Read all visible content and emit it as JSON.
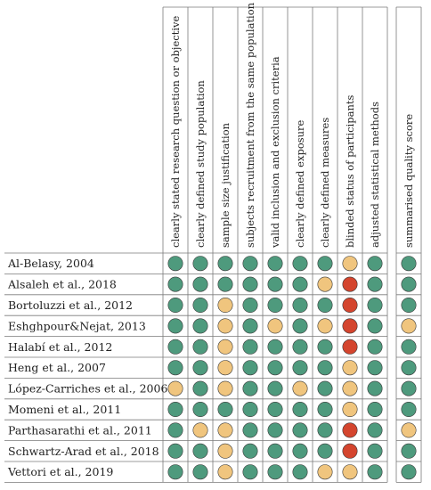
{
  "chart_data": {
    "type": "table",
    "columns": [
      "clearly stated research question or objective",
      "clearly defined study population",
      "sample size justification",
      "subjects recruitment from the same population",
      "valid inclusion and exclusion criteria",
      "clearly defined exposure",
      "clearly defined measures",
      "blinded status of participants",
      "adjusted statistical methods",
      "summarised quality score"
    ],
    "rows": [
      "Al-Belasy, 2004",
      "Alsaleh et al., 2018",
      "Bortoluzzi et al., 2012",
      "Eshghpour&Nejat, 2013",
      "Halabí et al., 2012",
      "Heng et al., 2007",
      "López-Carriches et al., 2006",
      "Momeni et al., 2011",
      "Parthasarathi et al., 2011",
      "Schwartz-Arad et al., 2018",
      "Vettori et al., 2019"
    ],
    "values": [
      [
        "green",
        "green",
        "green",
        "green",
        "green",
        "green",
        "green",
        "yellow",
        "green",
        "green"
      ],
      [
        "green",
        "green",
        "green",
        "green",
        "green",
        "green",
        "yellow",
        "red",
        "green",
        "green"
      ],
      [
        "green",
        "green",
        "yellow",
        "green",
        "green",
        "green",
        "green",
        "red",
        "green",
        "green"
      ],
      [
        "green",
        "green",
        "yellow",
        "green",
        "yellow",
        "green",
        "yellow",
        "red",
        "green",
        "yellow"
      ],
      [
        "green",
        "green",
        "yellow",
        "green",
        "green",
        "green",
        "green",
        "red",
        "green",
        "green"
      ],
      [
        "green",
        "green",
        "yellow",
        "green",
        "green",
        "green",
        "green",
        "yellow",
        "green",
        "green"
      ],
      [
        "yellow",
        "green",
        "yellow",
        "green",
        "green",
        "yellow",
        "green",
        "yellow",
        "green",
        "green"
      ],
      [
        "green",
        "green",
        "green",
        "green",
        "green",
        "green",
        "green",
        "yellow",
        "green",
        "green"
      ],
      [
        "green",
        "yellow",
        "yellow",
        "green",
        "green",
        "green",
        "green",
        "red",
        "green",
        "yellow"
      ],
      [
        "green",
        "green",
        "yellow",
        "green",
        "green",
        "green",
        "green",
        "red",
        "green",
        "green"
      ],
      [
        "green",
        "green",
        "yellow",
        "green",
        "green",
        "green",
        "yellow",
        "yellow",
        "green",
        "green"
      ]
    ],
    "colors": {
      "green": "#4e9a7d",
      "yellow": "#f0c57e",
      "red": "#d4452e"
    },
    "grid_color": "#7a7a7a"
  }
}
